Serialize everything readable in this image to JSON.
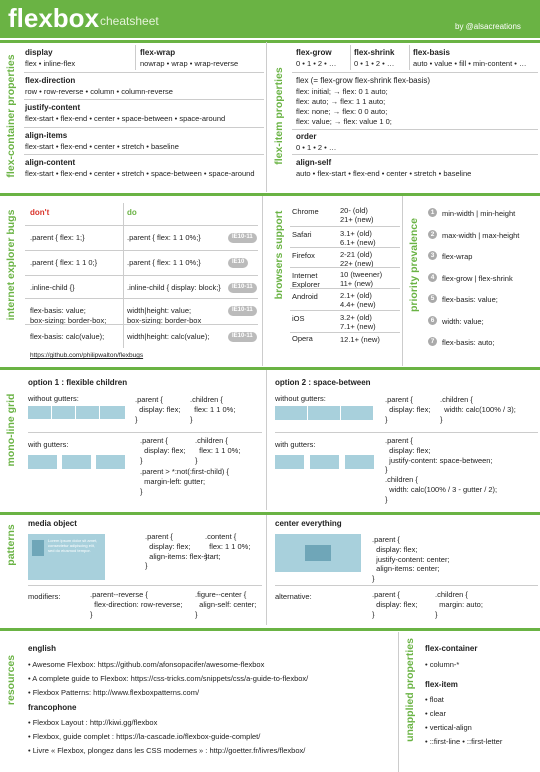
{
  "header": {
    "title": "flexbox",
    "subtitle": "cheatsheet",
    "author": "by @alsacreations"
  },
  "container_properties": {
    "label": "flex-container properties",
    "items": [
      {
        "name": "display",
        "values": "flex • inline-flex"
      },
      {
        "name": "flex-wrap",
        "values": "nowrap • wrap • wrap-reverse"
      },
      {
        "name": "flex-direction",
        "values": "row • row-reverse • column • column-reverse"
      },
      {
        "name": "justify-content",
        "values": "flex-start • flex-end • center • space-between • space-around"
      },
      {
        "name": "align-items",
        "values": "flex-start • flex-end • center • stretch • baseline"
      },
      {
        "name": "align-content",
        "values": "flex-start • flex-end • center • stretch • space-between • space-around"
      }
    ]
  },
  "item_properties": {
    "label": "flex-item properties",
    "items": [
      {
        "name": "flex-grow",
        "values": "0 • 1 • 2 • …"
      },
      {
        "name": "flex-shrink",
        "values": "0 • 1 • 2 • …"
      },
      {
        "name": "flex-basis",
        "values": "auto • value • fill • min-content • …"
      },
      {
        "name": "order",
        "values": "0 • 1 • 2 • …"
      },
      {
        "name": "align-self",
        "values": "auto • flex-start • flex-end • center • stretch • baseline"
      }
    ],
    "shorthand": {
      "title": "flex (= flex-grow flex-shrink flex-basis)",
      "lines": [
        "flex: initial; → flex: 0 1 auto;",
        "flex: auto; → flex: 1 1 auto;",
        "flex: none; → flex: 0 0 auto;",
        "flex: value; → flex: value 1 0;"
      ]
    }
  },
  "ie_bugs": {
    "label": "internet explorer bugs",
    "dont": "don't",
    "do": "do",
    "rows": [
      {
        "dont": ".parent { flex: 1;}",
        "do": ".parent { flex: 1 1 0%;}",
        "tag": "IE10-11"
      },
      {
        "dont": ".parent { flex: 1 1 0;}",
        "do": ".parent { flex: 1 1 0%;}",
        "tag": "IE10"
      },
      {
        "dont": ".inline-child {}",
        "do": ".inline-child { display: block;}",
        "tag": "IE10-11"
      },
      {
        "dont": "flex-basis: value;\nbox-sizing: border-box;",
        "do": "width|height: value;\nbox-sizing: border-box",
        "tag": "IE10-11"
      },
      {
        "dont": "flex-basis: calc(value);",
        "do": "width|height: calc(value);",
        "tag": "IE10-11"
      }
    ],
    "link": "https://github.com/philipwalton/flexbugs"
  },
  "browser_support": {
    "label": "browsers support",
    "rows": [
      {
        "browser": "Chrome",
        "versions": "20- (old)\n21+ (new)"
      },
      {
        "browser": "Safari",
        "versions": "3.1+ (old)\n6.1+ (new)"
      },
      {
        "browser": "Firefox",
        "versions": "2-21 (old)\n22+ (new)"
      },
      {
        "browser": "Internet\nExplorer",
        "versions": "10 (tweener)\n11+ (new)"
      },
      {
        "browser": "Android",
        "versions": "2.1+ (old)\n4.4+ (new)"
      },
      {
        "browser": "iOS",
        "versions": "3.2+ (old)\n7.1+ (new)"
      },
      {
        "browser": "Opera",
        "versions": "12.1+ (new)"
      }
    ]
  },
  "priority": {
    "label": "priority prevalence",
    "items": [
      {
        "rank": 1,
        "text": "min-width | min-height"
      },
      {
        "rank": 2,
        "text": "max-width | max-height"
      },
      {
        "rank": 3,
        "text": "flex-wrap"
      },
      {
        "rank": 4,
        "text": "flex-grow | flex-shrink"
      },
      {
        "rank": 5,
        "text": "flex-basis: value;"
      },
      {
        "rank": 6,
        "text": "width: value;"
      },
      {
        "rank": 7,
        "text": "flex-basis: auto;"
      }
    ]
  },
  "grid": {
    "label": "mono-line grid",
    "option1": {
      "title": "option 1 : flexible children",
      "without": "without gutters:",
      "code_parent": ".parent {\n  display: flex;\n}",
      "code_children": ".children {\n  flex: 1 1 0%;\n}",
      "with": "with gutters:",
      "code_parent2": ".parent {\n  display: flex;\n}",
      "code_children2": ".children {\n  flex: 1 1 0%;\n}",
      "code_gutter": ".parent > *:not(:first-child) {\n  margin-left: gutter;\n}"
    },
    "option2": {
      "title": "option 2 : space-between",
      "without": "without gutters:",
      "code_parent": ".parent {\n  display: flex;\n}",
      "code_children": ".children {\n  width: calc(100% / 3);\n}",
      "with": "with gutters:",
      "code_with": ".parent {\n  display: flex;\n  justify-content: space-between;\n}\n.children {\n  width: calc(100% / 3 - gutter / 2);\n}"
    }
  },
  "patterns": {
    "label": "patterns",
    "media": {
      "title": "media object",
      "sample": "Lorem ipsum dolor sit amet, consectetur adipiscing elit, sed do eiusmod tempor.",
      "code_parent": ".parent {\n  display: flex;\n  align-items: flex-start;\n}",
      "code_content": ".content {\n  flex: 1 1 0%;\n}",
      "modifiers": "modifiers:",
      "code_reverse": ".parent--reverse {\n  flex-direction: row-reverse;\n}",
      "code_center": ".figure--center {\n  align-self: center;\n}"
    },
    "center": {
      "title": "center everything",
      "code": ".parent {\n  display: flex;\n  justify-content: center;\n  align-items: center;\n}",
      "alternative": "alternative:",
      "code_alt_parent": ".parent {\n  display: flex;\n}",
      "code_alt_children": ".children {\n  margin: auto;\n}"
    }
  },
  "resources": {
    "label": "resources",
    "english": "english",
    "english_links": [
      "• Awesome Flexbox: https://github.com/afonsopacifer/awesome-flexbox",
      "• A complete guide to Flexbox: https://css-tricks.com/snippets/css/a-guide-to-flexbox/",
      "• Flexbox Patterns: http://www.flexboxpatterns.com/"
    ],
    "french": "francophone",
    "french_links": [
      "• Flexbox Layout : http://kiwi.gg/flexbox",
      "• Flexbox, guide complet : https://la-cascade.io/flexbox-guide-complet/",
      "• Livre « Flexbox, plongez dans les CSS modernes » : http://goetter.fr/livres/flexbox/"
    ]
  },
  "unapplied": {
    "label": "unapplied properties",
    "container": "flex-container",
    "container_items": [
      "• column-*"
    ],
    "item": "flex-item",
    "item_items": [
      "• float",
      "• clear",
      "• vertical-align",
      "• ::first-line • ::first-letter"
    ]
  }
}
